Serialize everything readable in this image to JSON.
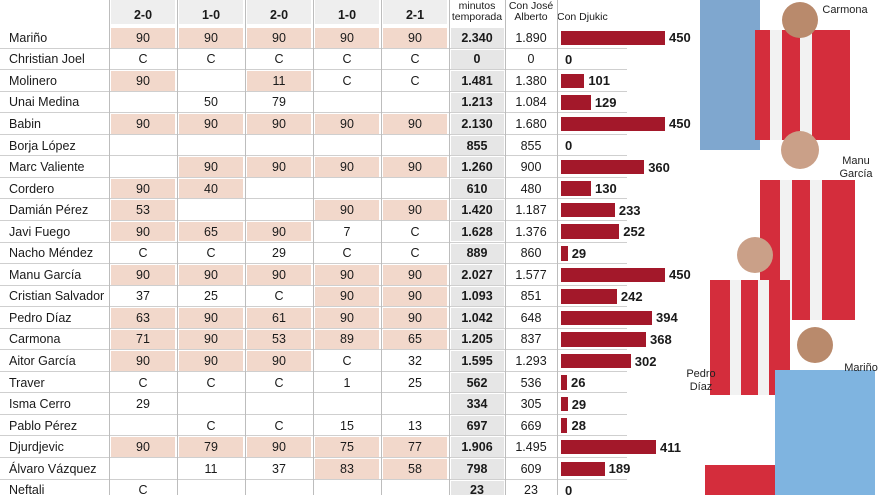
{
  "header": {
    "matches": [
      "2-0",
      "1-0",
      "2-0",
      "1-0",
      "2-1"
    ],
    "total": "minutos temporada",
    "ja": "Con José Alberto",
    "djukic": "Con Djukic"
  },
  "rows": [
    {
      "name": "Mariño",
      "matches": [
        "90",
        "90",
        "90",
        "90",
        "90"
      ],
      "shaded": [
        true,
        true,
        true,
        true,
        true
      ],
      "total": "2.340",
      "ja": "1.890",
      "djukic": 450
    },
    {
      "name": "Christian Joel",
      "matches": [
        "C",
        "C",
        "C",
        "C",
        "C"
      ],
      "shaded": [
        false,
        false,
        false,
        false,
        false
      ],
      "total": "0",
      "ja": "0",
      "djukic": 0
    },
    {
      "name": "Molinero",
      "matches": [
        "90",
        null,
        "11",
        "C",
        "C"
      ],
      "shaded": [
        true,
        false,
        true,
        false,
        false
      ],
      "total": "1.481",
      "ja": "1.380",
      "djukic": 101
    },
    {
      "name": "Unai Medina",
      "matches": [
        null,
        "50",
        "79",
        null,
        null
      ],
      "shaded": [
        false,
        false,
        false,
        false,
        false
      ],
      "total": "1.213",
      "ja": "1.084",
      "djukic": 129
    },
    {
      "name": "Babin",
      "matches": [
        "90",
        "90",
        "90",
        "90",
        "90"
      ],
      "shaded": [
        true,
        true,
        true,
        true,
        true
      ],
      "total": "2.130",
      "ja": "1.680",
      "djukic": 450
    },
    {
      "name": "Borja López",
      "matches": [
        null,
        null,
        null,
        null,
        null
      ],
      "shaded": [
        false,
        false,
        false,
        false,
        false
      ],
      "total": "855",
      "ja": "855",
      "djukic": 0
    },
    {
      "name": "Marc Valiente",
      "matches": [
        null,
        "90",
        "90",
        "90",
        "90"
      ],
      "shaded": [
        false,
        true,
        true,
        true,
        true
      ],
      "total": "1.260",
      "ja": "900",
      "djukic": 360
    },
    {
      "name": "Cordero",
      "matches": [
        "90",
        "40",
        null,
        null,
        null
      ],
      "shaded": [
        true,
        true,
        false,
        false,
        false
      ],
      "total": "610",
      "ja": "480",
      "djukic": 130
    },
    {
      "name": "Damián Pérez",
      "matches": [
        "53",
        null,
        null,
        "90",
        "90"
      ],
      "shaded": [
        true,
        false,
        false,
        true,
        true
      ],
      "total": "1.420",
      "ja": "1.187",
      "djukic": 233
    },
    {
      "name": "Javi Fuego",
      "matches": [
        "90",
        "65",
        "90",
        "7",
        "C"
      ],
      "shaded": [
        true,
        true,
        true,
        false,
        false
      ],
      "total": "1.628",
      "ja": "1.376",
      "djukic": 252
    },
    {
      "name": "Nacho Méndez",
      "matches": [
        "C",
        "C",
        "29",
        "C",
        "C"
      ],
      "shaded": [
        false,
        false,
        false,
        false,
        false
      ],
      "total": "889",
      "ja": "860",
      "djukic": 29
    },
    {
      "name": "Manu García",
      "matches": [
        "90",
        "90",
        "90",
        "90",
        "90"
      ],
      "shaded": [
        true,
        true,
        true,
        true,
        true
      ],
      "total": "2.027",
      "ja": "1.577",
      "djukic": 450
    },
    {
      "name": "Cristian Salvador",
      "matches": [
        "37",
        "25",
        "C",
        "90",
        "90"
      ],
      "shaded": [
        false,
        false,
        false,
        true,
        true
      ],
      "total": "1.093",
      "ja": "851",
      "djukic": 242
    },
    {
      "name": "Pedro Díaz",
      "matches": [
        "63",
        "90",
        "61",
        "90",
        "90"
      ],
      "shaded": [
        true,
        true,
        true,
        true,
        true
      ],
      "total": "1.042",
      "ja": "648",
      "djukic": 394
    },
    {
      "name": "Carmona",
      "matches": [
        "71",
        "90",
        "53",
        "89",
        "65"
      ],
      "shaded": [
        true,
        true,
        true,
        true,
        true
      ],
      "total": "1.205",
      "ja": "837",
      "djukic": 368
    },
    {
      "name": "Aitor García",
      "matches": [
        "90",
        "90",
        "90",
        "C",
        "32"
      ],
      "shaded": [
        true,
        true,
        true,
        false,
        false
      ],
      "total": "1.595",
      "ja": "1.293",
      "djukic": 302
    },
    {
      "name": "Traver",
      "matches": [
        "C",
        "C",
        "C",
        "1",
        "25"
      ],
      "shaded": [
        false,
        false,
        false,
        false,
        false
      ],
      "total": "562",
      "ja": "536",
      "djukic": 26
    },
    {
      "name": "Isma Cerro",
      "matches": [
        "29",
        null,
        null,
        null,
        null
      ],
      "shaded": [
        false,
        false,
        false,
        false,
        false
      ],
      "total": "334",
      "ja": "305",
      "djukic": 29
    },
    {
      "name": "Pablo Pérez",
      "matches": [
        null,
        "C",
        "C",
        "15",
        "13"
      ],
      "shaded": [
        false,
        false,
        false,
        false,
        false
      ],
      "total": "697",
      "ja": "669",
      "djukic": 28
    },
    {
      "name": "Djurdjevic",
      "matches": [
        "90",
        "79",
        "90",
        "75",
        "77"
      ],
      "shaded": [
        true,
        true,
        true,
        true,
        true
      ],
      "total": "1.906",
      "ja": "1.495",
      "djukic": 411
    },
    {
      "name": "Álvaro Vázquez",
      "matches": [
        null,
        "11",
        "37",
        "83",
        "58"
      ],
      "shaded": [
        false,
        false,
        false,
        true,
        true
      ],
      "total": "798",
      "ja": "609",
      "djukic": 189
    },
    {
      "name": "Neftali",
      "matches": [
        "C",
        null,
        null,
        null,
        null
      ],
      "shaded": [
        false,
        false,
        false,
        false,
        false
      ],
      "total": "23",
      "ja": "23",
      "djukic": 0
    }
  ],
  "photo_labels": [
    "Carmona",
    "Manu García",
    "Pedro Díaz",
    "Mariño"
  ]
}
